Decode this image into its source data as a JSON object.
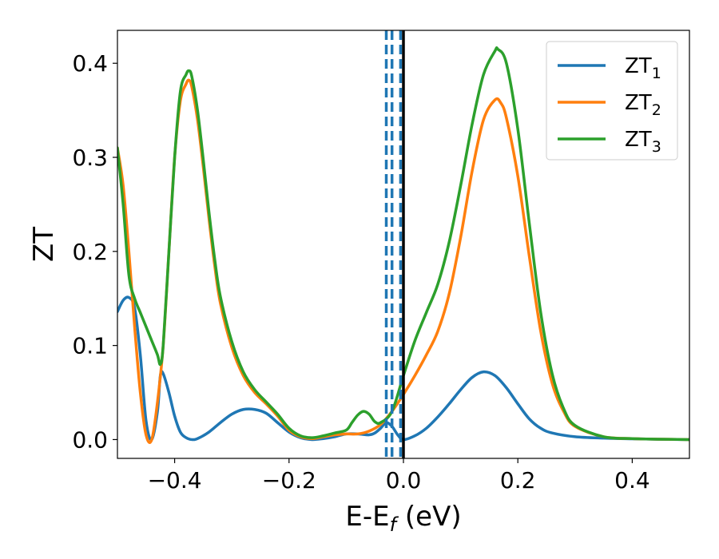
{
  "chart_data": {
    "type": "line",
    "xlabel": "E-E",
    "xlabel_sub": "f",
    "xlabel_unit": " (eV)",
    "ylabel": "ZT",
    "xlim": [
      -0.5,
      0.5
    ],
    "ylim": [
      -0.02,
      0.435
    ],
    "x_ticks": [
      -0.4,
      -0.2,
      0.0,
      0.2,
      0.4
    ],
    "x_tick_labels": [
      "−0.4",
      "−0.2",
      "0.0",
      "0.2",
      "0.4"
    ],
    "y_ticks": [
      0.0,
      0.1,
      0.2,
      0.3,
      0.4
    ],
    "y_tick_labels": [
      "0.0",
      "0.1",
      "0.2",
      "0.3",
      "0.4"
    ],
    "grid": false,
    "legend_position": "top-right",
    "vertical_lines": [
      {
        "x": -0.03,
        "style": "dashed",
        "color": "#1f77b4"
      },
      {
        "x": -0.02,
        "style": "dashed",
        "color": "#1f77b4"
      },
      {
        "x": -0.005,
        "style": "dashed",
        "color": "#1f77b4"
      },
      {
        "x": 0.0,
        "style": "solid",
        "color": "#000000"
      }
    ],
    "series": [
      {
        "name": "ZT",
        "name_sub": "1",
        "color": "#1f77b4",
        "points": [
          [
            -0.5,
            0.136
          ],
          [
            -0.49,
            0.148
          ],
          [
            -0.48,
            0.151
          ],
          [
            -0.47,
            0.14
          ],
          [
            -0.46,
            0.09
          ],
          [
            -0.45,
            0.02
          ],
          [
            -0.44,
            0.0
          ],
          [
            -0.43,
            0.03
          ],
          [
            -0.425,
            0.068
          ],
          [
            -0.42,
            0.07
          ],
          [
            -0.41,
            0.05
          ],
          [
            -0.4,
            0.025
          ],
          [
            -0.39,
            0.008
          ],
          [
            -0.38,
            0.002
          ],
          [
            -0.37,
            0.0
          ],
          [
            -0.36,
            0.001
          ],
          [
            -0.34,
            0.008
          ],
          [
            -0.32,
            0.018
          ],
          [
            -0.3,
            0.027
          ],
          [
            -0.28,
            0.032
          ],
          [
            -0.26,
            0.032
          ],
          [
            -0.24,
            0.028
          ],
          [
            -0.22,
            0.018
          ],
          [
            -0.2,
            0.008
          ],
          [
            -0.18,
            0.002
          ],
          [
            -0.16,
            0.0
          ],
          [
            -0.14,
            0.001
          ],
          [
            -0.12,
            0.003
          ],
          [
            -0.1,
            0.006
          ],
          [
            -0.08,
            0.006
          ],
          [
            -0.06,
            0.005
          ],
          [
            -0.05,
            0.007
          ],
          [
            -0.04,
            0.012
          ],
          [
            -0.03,
            0.018
          ],
          [
            -0.02,
            0.014
          ],
          [
            -0.01,
            0.005
          ],
          [
            0.0,
            0.0
          ],
          [
            0.02,
            0.004
          ],
          [
            0.04,
            0.012
          ],
          [
            0.06,
            0.024
          ],
          [
            0.08,
            0.038
          ],
          [
            0.1,
            0.053
          ],
          [
            0.12,
            0.066
          ],
          [
            0.14,
            0.072
          ],
          [
            0.16,
            0.068
          ],
          [
            0.18,
            0.055
          ],
          [
            0.2,
            0.038
          ],
          [
            0.22,
            0.022
          ],
          [
            0.24,
            0.012
          ],
          [
            0.26,
            0.007
          ],
          [
            0.3,
            0.003
          ],
          [
            0.35,
            0.0015
          ],
          [
            0.4,
            0.0008
          ],
          [
            0.45,
            0.0003
          ],
          [
            0.5,
            0.0
          ]
        ]
      },
      {
        "name": "ZT",
        "name_sub": "2",
        "color": "#ff7f0e",
        "points": [
          [
            -0.5,
            0.31
          ],
          [
            -0.49,
            0.27
          ],
          [
            -0.48,
            0.2
          ],
          [
            -0.47,
            0.12
          ],
          [
            -0.46,
            0.05
          ],
          [
            -0.45,
            0.005
          ],
          [
            -0.44,
            0.0
          ],
          [
            -0.43,
            0.04
          ],
          [
            -0.42,
            0.1
          ],
          [
            -0.41,
            0.2
          ],
          [
            -0.4,
            0.3
          ],
          [
            -0.39,
            0.36
          ],
          [
            -0.38,
            0.378
          ],
          [
            -0.375,
            0.382
          ],
          [
            -0.37,
            0.375
          ],
          [
            -0.36,
            0.34
          ],
          [
            -0.35,
            0.29
          ],
          [
            -0.34,
            0.235
          ],
          [
            -0.33,
            0.185
          ],
          [
            -0.32,
            0.145
          ],
          [
            -0.3,
            0.098
          ],
          [
            -0.28,
            0.068
          ],
          [
            -0.26,
            0.05
          ],
          [
            -0.24,
            0.038
          ],
          [
            -0.22,
            0.025
          ],
          [
            -0.2,
            0.01
          ],
          [
            -0.18,
            0.003
          ],
          [
            -0.16,
            0.001
          ],
          [
            -0.14,
            0.003
          ],
          [
            -0.12,
            0.005
          ],
          [
            -0.1,
            0.006
          ],
          [
            -0.08,
            0.006
          ],
          [
            -0.06,
            0.009
          ],
          [
            -0.04,
            0.016
          ],
          [
            -0.02,
            0.03
          ],
          [
            0.0,
            0.048
          ],
          [
            0.02,
            0.068
          ],
          [
            0.04,
            0.09
          ],
          [
            0.06,
            0.115
          ],
          [
            0.08,
            0.155
          ],
          [
            0.1,
            0.215
          ],
          [
            0.12,
            0.285
          ],
          [
            0.14,
            0.34
          ],
          [
            0.16,
            0.361
          ],
          [
            0.17,
            0.358
          ],
          [
            0.18,
            0.342
          ],
          [
            0.2,
            0.28
          ],
          [
            0.22,
            0.195
          ],
          [
            0.24,
            0.115
          ],
          [
            0.26,
            0.06
          ],
          [
            0.28,
            0.03
          ],
          [
            0.3,
            0.014
          ],
          [
            0.35,
            0.003
          ],
          [
            0.4,
            0.001
          ],
          [
            0.45,
            0.0004
          ],
          [
            0.5,
            0.0
          ]
        ]
      },
      {
        "name": "ZT",
        "name_sub": "3",
        "color": "#2ca02c",
        "points": [
          [
            -0.5,
            0.31
          ],
          [
            -0.49,
            0.25
          ],
          [
            -0.48,
            0.175
          ],
          [
            -0.47,
            0.15
          ],
          [
            -0.46,
            0.135
          ],
          [
            -0.45,
            0.12
          ],
          [
            -0.44,
            0.105
          ],
          [
            -0.43,
            0.09
          ],
          [
            -0.425,
            0.08
          ],
          [
            -0.42,
            0.1
          ],
          [
            -0.41,
            0.2
          ],
          [
            -0.4,
            0.3
          ],
          [
            -0.39,
            0.37
          ],
          [
            -0.38,
            0.388
          ],
          [
            -0.375,
            0.392
          ],
          [
            -0.37,
            0.386
          ],
          [
            -0.36,
            0.35
          ],
          [
            -0.35,
            0.298
          ],
          [
            -0.34,
            0.242
          ],
          [
            -0.33,
            0.192
          ],
          [
            -0.32,
            0.152
          ],
          [
            -0.3,
            0.104
          ],
          [
            -0.28,
            0.072
          ],
          [
            -0.26,
            0.053
          ],
          [
            -0.24,
            0.04
          ],
          [
            -0.22,
            0.027
          ],
          [
            -0.2,
            0.012
          ],
          [
            -0.18,
            0.004
          ],
          [
            -0.16,
            0.002
          ],
          [
            -0.14,
            0.004
          ],
          [
            -0.12,
            0.007
          ],
          [
            -0.1,
            0.01
          ],
          [
            -0.09,
            0.018
          ],
          [
            -0.08,
            0.026
          ],
          [
            -0.07,
            0.03
          ],
          [
            -0.06,
            0.027
          ],
          [
            -0.05,
            0.019
          ],
          [
            -0.04,
            0.018
          ],
          [
            -0.02,
            0.03
          ],
          [
            0.0,
            0.068
          ],
          [
            0.02,
            0.105
          ],
          [
            0.04,
            0.135
          ],
          [
            0.06,
            0.165
          ],
          [
            0.08,
            0.21
          ],
          [
            0.1,
            0.27
          ],
          [
            0.12,
            0.335
          ],
          [
            0.14,
            0.388
          ],
          [
            0.16,
            0.413
          ],
          [
            0.165,
            0.415
          ],
          [
            0.18,
            0.4
          ],
          [
            0.2,
            0.33
          ],
          [
            0.22,
            0.23
          ],
          [
            0.24,
            0.135
          ],
          [
            0.26,
            0.07
          ],
          [
            0.28,
            0.033
          ],
          [
            0.3,
            0.015
          ],
          [
            0.35,
            0.003
          ],
          [
            0.4,
            0.001
          ],
          [
            0.45,
            0.0004
          ],
          [
            0.5,
            0.0
          ]
        ]
      }
    ]
  }
}
